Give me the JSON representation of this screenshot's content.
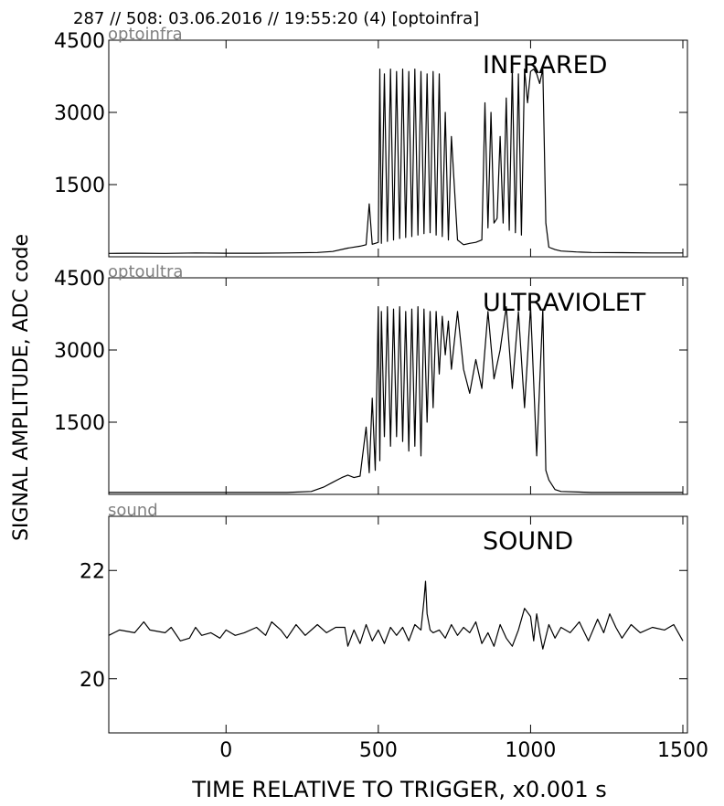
{
  "header": "287 // 508:   03.06.2016 // 19:55:20 (4)  [optoinfra]",
  "ylabel": "SIGNAL AMPLITUDE,  ADC code",
  "xlabel": "TIME RELATIVE TO TRIGGER,   x0.001 s",
  "chart_data": [
    {
      "type": "line",
      "source_label": "optoinfra",
      "title": "INFRARED",
      "xlim": [
        -385,
        1515
      ],
      "ylim": [
        0,
        4500
      ],
      "yticks": [
        1500,
        3000,
        4500
      ],
      "ytick_labels": [
        "1500",
        "3000",
        "4500"
      ],
      "series": [
        {
          "x": [
            -385,
            -300,
            -200,
            -100,
            0,
            100,
            200,
            300,
            350,
            400,
            440,
            460,
            470,
            480,
            490,
            500,
            505,
            510,
            520,
            530,
            540,
            550,
            560,
            570,
            580,
            590,
            600,
            610,
            620,
            630,
            640,
            650,
            660,
            670,
            680,
            690,
            700,
            710,
            720,
            730,
            740,
            760,
            780,
            800,
            820,
            840,
            850,
            860,
            870,
            880,
            890,
            900,
            910,
            920,
            930,
            940,
            950,
            960,
            970,
            980,
            990,
            1000,
            1010,
            1020,
            1030,
            1040,
            1050,
            1060,
            1080,
            1100,
            1150,
            1200,
            1300,
            1400,
            1500
          ],
          "y": [
            70,
            75,
            70,
            80,
            75,
            75,
            80,
            90,
            110,
            180,
            220,
            250,
            1100,
            260,
            280,
            300,
            3900,
            280,
            3800,
            320,
            3900,
            350,
            3850,
            380,
            3900,
            400,
            3850,
            420,
            3900,
            450,
            3850,
            480,
            3800,
            500,
            3850,
            450,
            3800,
            420,
            3000,
            350,
            2500,
            350,
            250,
            280,
            300,
            350,
            3200,
            600,
            3000,
            700,
            800,
            2500,
            700,
            3300,
            550,
            3900,
            500,
            3800,
            450,
            3900,
            3200,
            3850,
            3900,
            3800,
            3600,
            3900,
            700,
            200,
            150,
            120,
            100,
            90,
            85,
            80,
            80
          ]
        }
      ]
    },
    {
      "type": "line",
      "source_label": "optoultra",
      "title": "ULTRAVIOLET",
      "xlim": [
        -385,
        1515
      ],
      "ylim": [
        0,
        4500
      ],
      "yticks": [
        1500,
        3000,
        4500
      ],
      "ytick_labels": [
        "1500",
        "3000",
        "4500"
      ],
      "series": [
        {
          "x": [
            -385,
            -300,
            -200,
            -100,
            0,
            100,
            200,
            280,
            320,
            350,
            380,
            400,
            420,
            440,
            460,
            470,
            480,
            490,
            500,
            505,
            510,
            520,
            530,
            540,
            550,
            560,
            570,
            580,
            590,
            600,
            610,
            620,
            630,
            640,
            650,
            660,
            670,
            680,
            690,
            700,
            710,
            720,
            730,
            740,
            760,
            780,
            800,
            820,
            840,
            860,
            880,
            900,
            920,
            940,
            960,
            980,
            1000,
            1020,
            1040,
            1050,
            1060,
            1080,
            1100,
            1200,
            1300,
            1400,
            1500
          ],
          "y": [
            40,
            40,
            40,
            40,
            40,
            40,
            40,
            60,
            150,
            250,
            350,
            400,
            350,
            380,
            1400,
            450,
            2000,
            500,
            3900,
            700,
            3800,
            1200,
            3900,
            1000,
            3850,
            1200,
            3900,
            1100,
            3800,
            900,
            3850,
            1000,
            3900,
            800,
            3850,
            1500,
            3800,
            1800,
            3800,
            2500,
            3700,
            2900,
            3600,
            2600,
            3800,
            2600,
            2100,
            2800,
            2200,
            3800,
            2400,
            3000,
            3900,
            2200,
            3800,
            1800,
            3900,
            800,
            3850,
            500,
            300,
            100,
            60,
            40,
            40,
            40,
            40
          ]
        }
      ]
    },
    {
      "type": "line",
      "source_label": "sound",
      "title": "SOUND",
      "xlim": [
        -385,
        1515
      ],
      "ylim": [
        19,
        23
      ],
      "yticks": [
        20,
        22
      ],
      "ytick_labels": [
        "20",
        "22"
      ],
      "series": [
        {
          "x": [
            -385,
            -350,
            -300,
            -270,
            -250,
            -200,
            -180,
            -150,
            -120,
            -100,
            -80,
            -50,
            -20,
            0,
            30,
            60,
            100,
            130,
            150,
            180,
            200,
            230,
            260,
            300,
            330,
            360,
            390,
            400,
            420,
            440,
            460,
            480,
            500,
            520,
            540,
            560,
            580,
            600,
            620,
            640,
            650,
            655,
            660,
            670,
            680,
            700,
            720,
            740,
            760,
            780,
            800,
            820,
            840,
            860,
            880,
            900,
            920,
            940,
            960,
            980,
            1000,
            1010,
            1020,
            1030,
            1040,
            1060,
            1080,
            1100,
            1130,
            1160,
            1190,
            1220,
            1240,
            1260,
            1280,
            1300,
            1330,
            1360,
            1400,
            1440,
            1470,
            1500
          ],
          "y": [
            20.8,
            20.9,
            20.85,
            21.05,
            20.9,
            20.85,
            20.95,
            20.7,
            20.75,
            20.95,
            20.8,
            20.85,
            20.75,
            20.9,
            20.8,
            20.85,
            20.95,
            20.8,
            21.05,
            20.9,
            20.75,
            21.0,
            20.8,
            21.0,
            20.85,
            20.95,
            20.95,
            20.6,
            20.9,
            20.65,
            21.0,
            20.7,
            20.9,
            20.65,
            20.95,
            20.8,
            20.95,
            20.7,
            21.0,
            20.9,
            21.45,
            21.8,
            21.2,
            20.9,
            20.85,
            20.9,
            20.75,
            21.0,
            20.8,
            20.95,
            20.85,
            21.05,
            20.65,
            20.85,
            20.6,
            21.0,
            20.75,
            20.6,
            20.9,
            21.3,
            21.15,
            20.7,
            21.2,
            20.85,
            20.55,
            21.0,
            20.75,
            20.95,
            20.85,
            21.05,
            20.7,
            21.1,
            20.85,
            21.2,
            20.95,
            20.75,
            21.0,
            20.85,
            20.95,
            20.9,
            21.0,
            20.7
          ]
        }
      ]
    }
  ],
  "xaxis": {
    "ticks": [
      0,
      500,
      1000,
      1500
    ],
    "tick_labels": [
      "0",
      "500",
      "1000",
      "1500"
    ]
  }
}
